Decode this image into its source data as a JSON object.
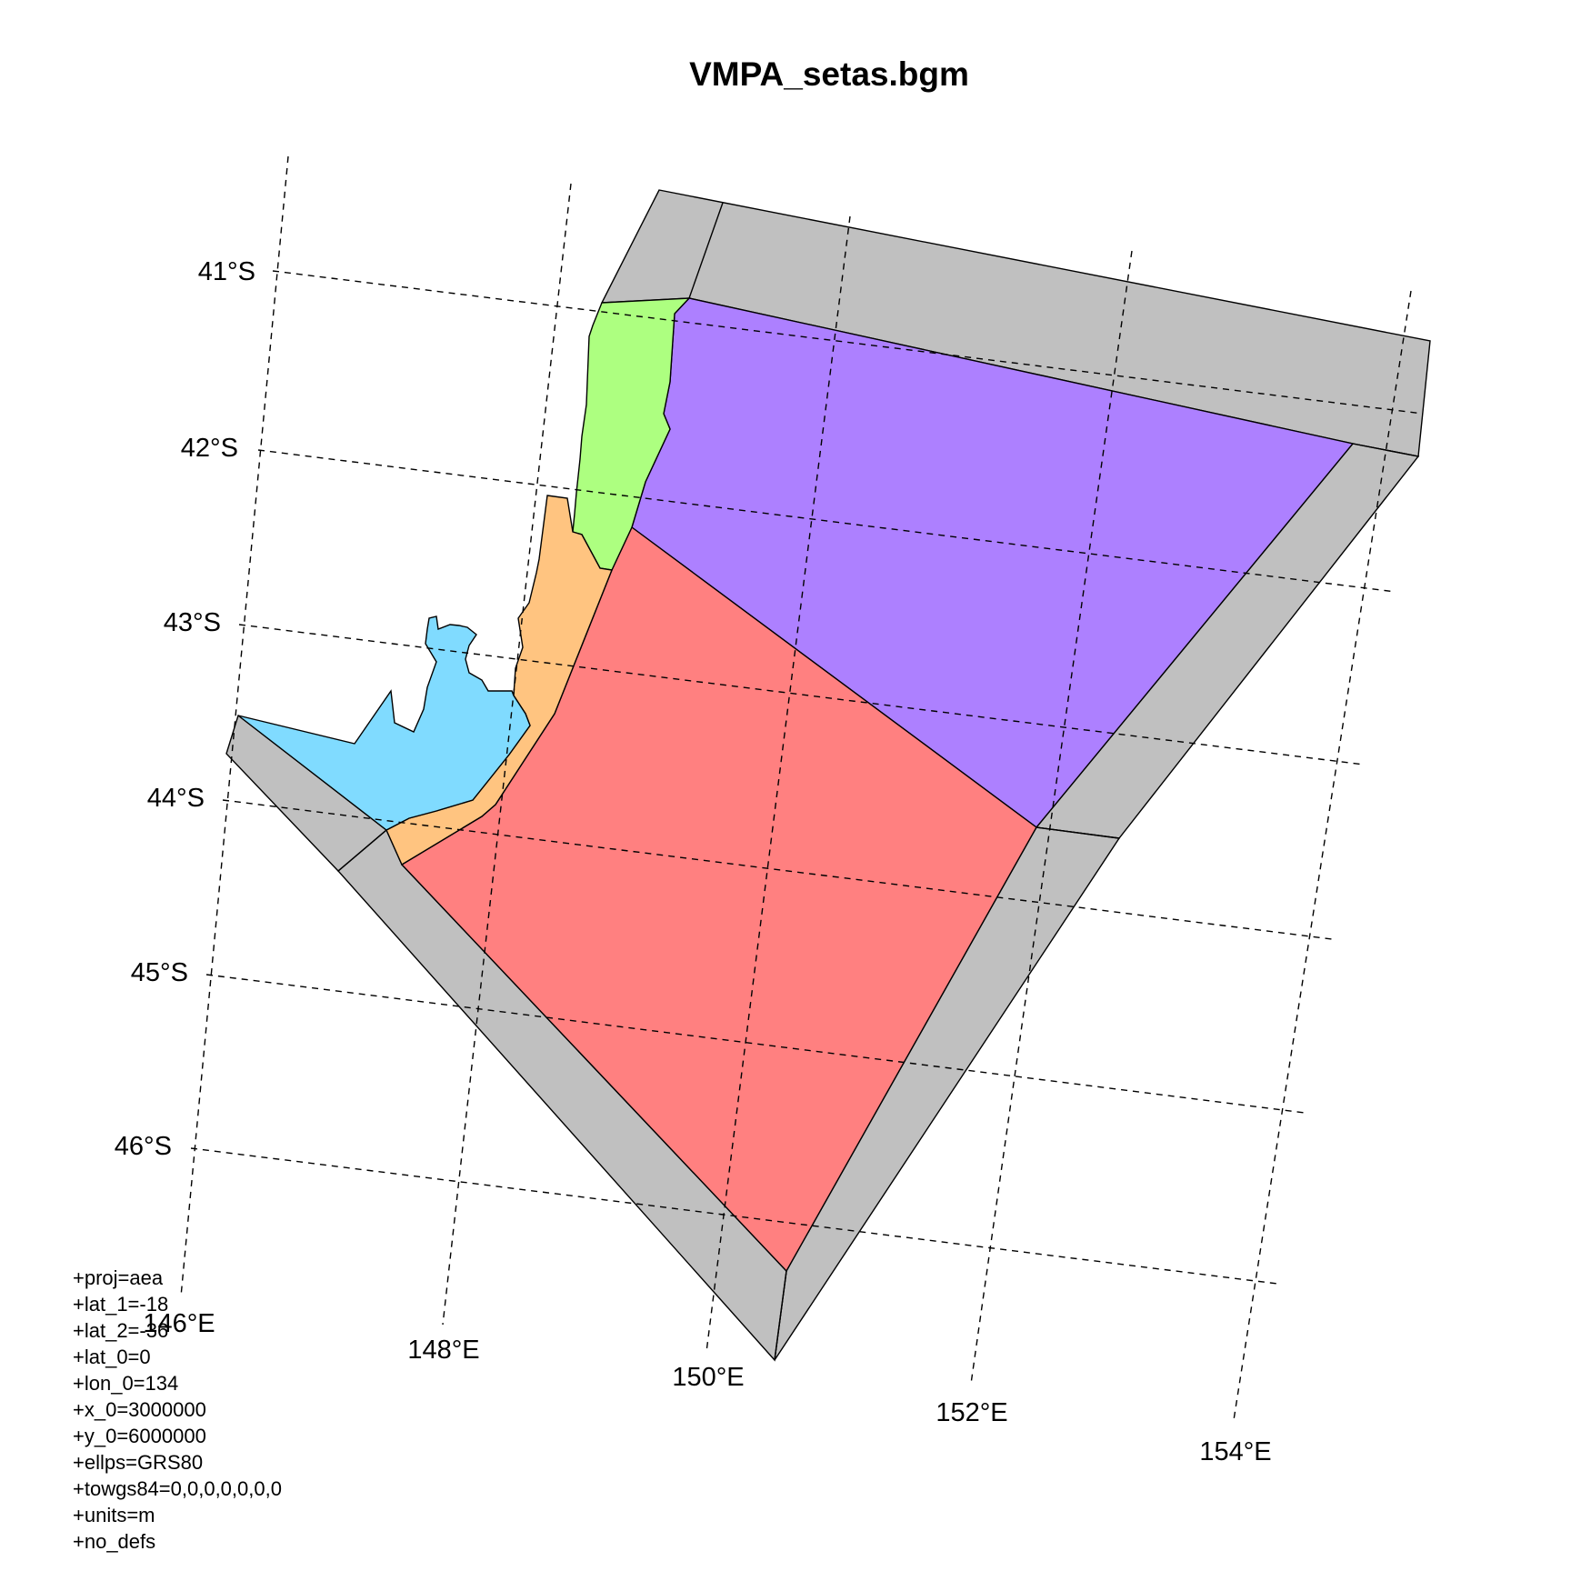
{
  "title": "VMPA_setas.bgm",
  "latitude_labels": [
    "41°S",
    "42°S",
    "43°S",
    "44°S",
    "45°S",
    "46°S"
  ],
  "longitude_labels": [
    "146°E",
    "148°E",
    "150°E",
    "152°E",
    "154°E"
  ],
  "projection_lines": [
    "+proj=aea",
    "+lat_1=-18",
    "+lat_2=-36",
    "+lat_0=0",
    "+lon_0=134",
    "+x_0=3000000",
    "+y_0=6000000",
    "+ellps=GRS80",
    "+towgs84=0,0,0,0,0,0,0",
    "+units=m",
    "+no_defs"
  ],
  "colors": {
    "boundary_box": "#c0c0c0",
    "box_green": "#adff80",
    "box_purple": "#ad80ff",
    "box_orange": "#ffc480",
    "box_blue": "#80dbff",
    "box_red": "#ff8080"
  }
}
